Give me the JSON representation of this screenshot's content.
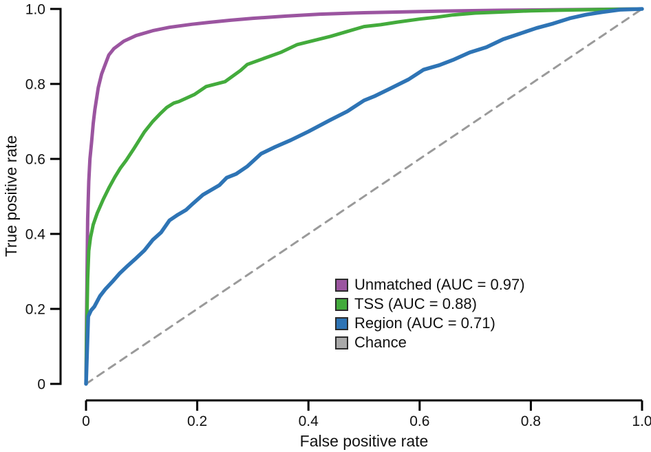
{
  "chart_data": {
    "type": "line",
    "title": "",
    "xlabel": "False positive rate",
    "ylabel": "True positive rate",
    "xlim": [
      0,
      1
    ],
    "ylim": [
      0,
      1
    ],
    "grid": false,
    "legend_position": "lower-right-inside",
    "axis_color": "#000000",
    "x_ticks": [
      0,
      0.2,
      0.4,
      0.6,
      0.8,
      1.0
    ],
    "x_tick_labels": [
      "0",
      "0.2",
      "0.4",
      "0.6",
      "0.8",
      "1.0"
    ],
    "y_ticks": [
      0,
      0.2,
      0.4,
      0.6,
      0.8,
      1.0
    ],
    "y_tick_labels": [
      "0",
      "0.2",
      "0.4",
      "0.6",
      "0.8",
      "1.0"
    ],
    "legend": [
      {
        "label": "Unmatched (AUC = 0.97)",
        "color": "#9b55a0"
      },
      {
        "label": "TSS (AUC = 0.88)",
        "color": "#43ab3c"
      },
      {
        "label": "Region (AUC = 0.71)",
        "color": "#2e74b5"
      },
      {
        "label": "Chance",
        "color": "#a9a9a9"
      }
    ],
    "series": [
      {
        "name": "Chance",
        "auc": null,
        "color": "#9a9a9a",
        "style": "dashed",
        "width": 3,
        "points": [
          [
            0,
            0
          ],
          [
            1,
            1
          ]
        ]
      },
      {
        "name": "Unmatched",
        "auc": 0.97,
        "color": "#9b55a0",
        "style": "solid",
        "width": 5,
        "points": [
          [
            0,
            0
          ],
          [
            0.001,
            0.18
          ],
          [
            0.003,
            0.44
          ],
          [
            0.005,
            0.54
          ],
          [
            0.007,
            0.6
          ],
          [
            0.01,
            0.645
          ],
          [
            0.013,
            0.695
          ],
          [
            0.016,
            0.732
          ],
          [
            0.022,
            0.79
          ],
          [
            0.028,
            0.826
          ],
          [
            0.035,
            0.854
          ],
          [
            0.041,
            0.877
          ],
          [
            0.05,
            0.894
          ],
          [
            0.068,
            0.914
          ],
          [
            0.09,
            0.929
          ],
          [
            0.12,
            0.942
          ],
          [
            0.15,
            0.951
          ],
          [
            0.19,
            0.959
          ],
          [
            0.22,
            0.964
          ],
          [
            0.26,
            0.97
          ],
          [
            0.3,
            0.975
          ],
          [
            0.36,
            0.981
          ],
          [
            0.42,
            0.986
          ],
          [
            0.5,
            0.99
          ],
          [
            0.58,
            0.9925
          ],
          [
            0.65,
            0.9945
          ],
          [
            0.75,
            0.9965
          ],
          [
            0.85,
            0.998
          ],
          [
            0.93,
            0.999
          ],
          [
            1,
            1
          ]
        ]
      },
      {
        "name": "TSS",
        "auc": 0.88,
        "color": "#43ab3c",
        "style": "solid",
        "width": 5,
        "points": [
          [
            0,
            0
          ],
          [
            0.001,
            0.12
          ],
          [
            0.003,
            0.28
          ],
          [
            0.005,
            0.355
          ],
          [
            0.008,
            0.39
          ],
          [
            0.013,
            0.425
          ],
          [
            0.02,
            0.455
          ],
          [
            0.031,
            0.492
          ],
          [
            0.042,
            0.525
          ],
          [
            0.052,
            0.552
          ],
          [
            0.062,
            0.576
          ],
          [
            0.072,
            0.596
          ],
          [
            0.085,
            0.625
          ],
          [
            0.105,
            0.672
          ],
          [
            0.12,
            0.7
          ],
          [
            0.133,
            0.72
          ],
          [
            0.145,
            0.737
          ],
          [
            0.158,
            0.749
          ],
          [
            0.167,
            0.753
          ],
          [
            0.195,
            0.772
          ],
          [
            0.216,
            0.793
          ],
          [
            0.25,
            0.806
          ],
          [
            0.278,
            0.836
          ],
          [
            0.29,
            0.852
          ],
          [
            0.32,
            0.868
          ],
          [
            0.35,
            0.884
          ],
          [
            0.38,
            0.905
          ],
          [
            0.41,
            0.916
          ],
          [
            0.44,
            0.927
          ],
          [
            0.47,
            0.94
          ],
          [
            0.5,
            0.953
          ],
          [
            0.53,
            0.958
          ],
          [
            0.56,
            0.965
          ],
          [
            0.6,
            0.973
          ],
          [
            0.63,
            0.978
          ],
          [
            0.66,
            0.984
          ],
          [
            0.7,
            0.989
          ],
          [
            0.75,
            0.992
          ],
          [
            0.8,
            0.995
          ],
          [
            0.85,
            0.9965
          ],
          [
            0.9,
            0.998
          ],
          [
            0.95,
            0.999
          ],
          [
            1,
            1
          ]
        ]
      },
      {
        "name": "Region",
        "auc": 0.71,
        "color": "#2e74b5",
        "style": "solid",
        "width": 5.5,
        "points": [
          [
            0,
            0
          ],
          [
            0.002,
            0.09
          ],
          [
            0.004,
            0.18
          ],
          [
            0.009,
            0.196
          ],
          [
            0.015,
            0.206
          ],
          [
            0.025,
            0.234
          ],
          [
            0.035,
            0.253
          ],
          [
            0.047,
            0.272
          ],
          [
            0.06,
            0.294
          ],
          [
            0.075,
            0.315
          ],
          [
            0.09,
            0.335
          ],
          [
            0.105,
            0.356
          ],
          [
            0.12,
            0.384
          ],
          [
            0.135,
            0.404
          ],
          [
            0.15,
            0.436
          ],
          [
            0.165,
            0.451
          ],
          [
            0.18,
            0.464
          ],
          [
            0.191,
            0.479
          ],
          [
            0.21,
            0.504
          ],
          [
            0.24,
            0.53
          ],
          [
            0.253,
            0.55
          ],
          [
            0.27,
            0.56
          ],
          [
            0.29,
            0.58
          ],
          [
            0.315,
            0.614
          ],
          [
            0.34,
            0.632
          ],
          [
            0.368,
            0.65
          ],
          [
            0.4,
            0.673
          ],
          [
            0.438,
            0.703
          ],
          [
            0.47,
            0.727
          ],
          [
            0.5,
            0.756
          ],
          [
            0.52,
            0.768
          ],
          [
            0.546,
            0.787
          ],
          [
            0.58,
            0.812
          ],
          [
            0.607,
            0.838
          ],
          [
            0.635,
            0.85
          ],
          [
            0.66,
            0.864
          ],
          [
            0.69,
            0.884
          ],
          [
            0.72,
            0.898
          ],
          [
            0.75,
            0.919
          ],
          [
            0.78,
            0.934
          ],
          [
            0.81,
            0.949
          ],
          [
            0.84,
            0.961
          ],
          [
            0.87,
            0.975
          ],
          [
            0.9,
            0.985
          ],
          [
            0.93,
            0.992
          ],
          [
            0.96,
            0.998
          ],
          [
            1,
            1
          ]
        ]
      }
    ]
  }
}
